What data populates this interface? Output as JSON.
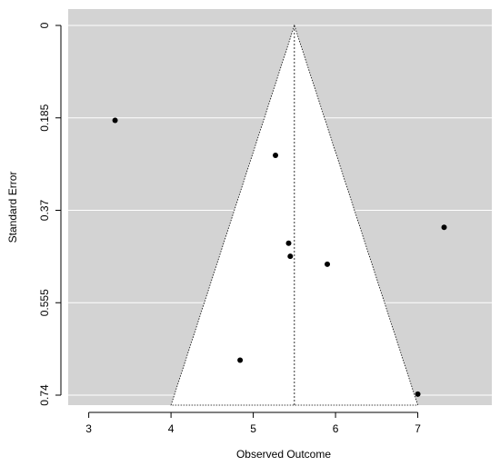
{
  "chart_data": {
    "type": "scatter",
    "subtype": "funnel-plot",
    "title": "",
    "xlabel": "Observed Outcome",
    "ylabel": "Standard Error",
    "xlim": [
      2.75,
      7.9
    ],
    "ylim": [
      0.76,
      0
    ],
    "y_reversed": true,
    "x_ticks": [
      "3",
      "4",
      "5",
      "6",
      "7"
    ],
    "y_ticks": [
      "0",
      "0.185",
      "0.37",
      "0.555",
      "0.74"
    ],
    "grid": true,
    "legend": "none",
    "funnel": {
      "center": 5.5,
      "base_left": 4.0,
      "base_right": 7.0,
      "base_se": 0.76
    },
    "points": [
      {
        "x": 3.32,
        "y": 0.19
      },
      {
        "x": 5.27,
        "y": 0.26
      },
      {
        "x": 7.32,
        "y": 0.404
      },
      {
        "x": 5.43,
        "y": 0.436
      },
      {
        "x": 5.45,
        "y": 0.462
      },
      {
        "x": 5.9,
        "y": 0.478
      },
      {
        "x": 4.84,
        "y": 0.67
      },
      {
        "x": 7.0,
        "y": 0.738
      }
    ],
    "colors": {
      "background": "#d3d3d3",
      "funnel_fill": "#ffffff",
      "grid": "#ffffff",
      "points": "#000000"
    }
  }
}
